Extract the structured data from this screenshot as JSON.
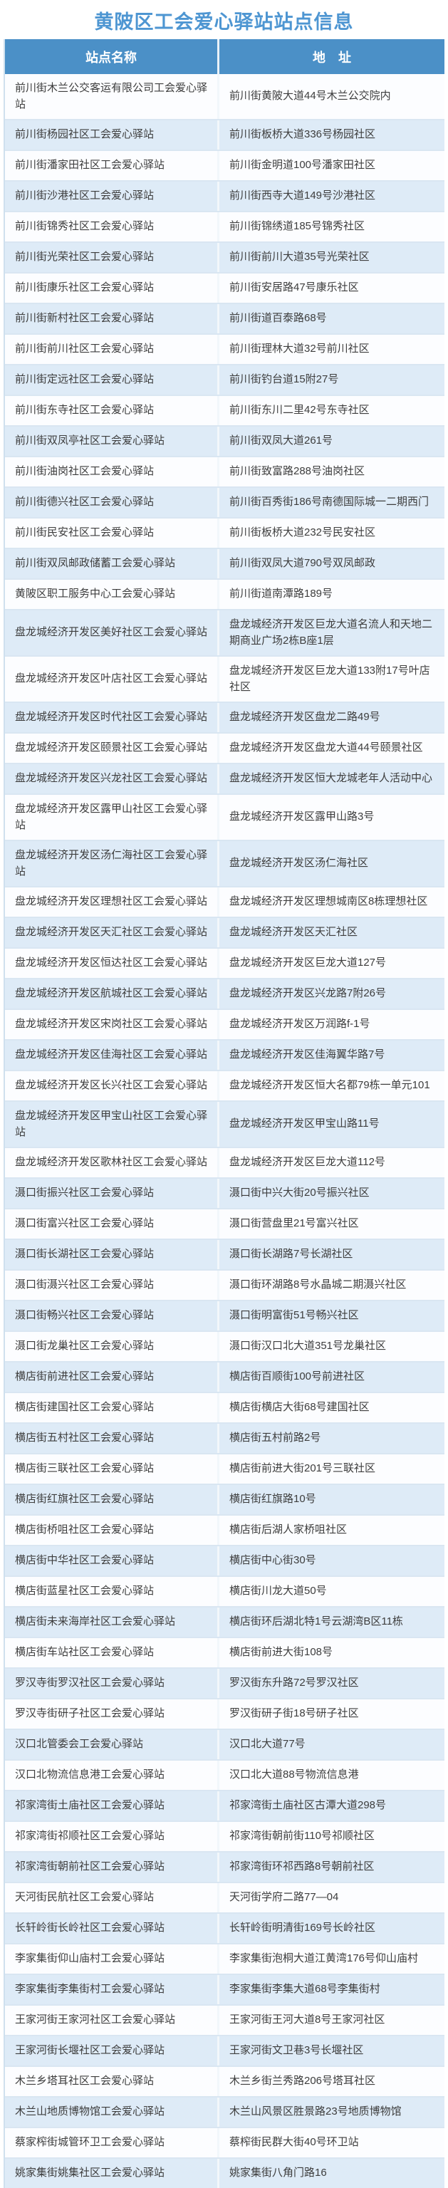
{
  "title": "黄陂区工会爱心驿站站点信息",
  "colors": {
    "title_blue": "#4e96d2",
    "header_bg": "#4b90c7",
    "row_even_bg": "#deebf7",
    "row_odd_bg": "#fcfdff",
    "text": "#3d3d3d"
  },
  "table": {
    "columns": {
      "name": "站点名称",
      "address": "地　址"
    },
    "rows": [
      {
        "name": "前川街木兰公交客运有限公司工会爱心驿站",
        "address": "前川街黄陂大道44号木兰公交院内"
      },
      {
        "name": "前川街杨园社区工会爱心驿站",
        "address": "前川街板桥大道336号杨园社区"
      },
      {
        "name": "前川街潘家田社区工会爱心驿站",
        "address": "前川街金明道100号潘家田社区"
      },
      {
        "name": "前川街沙港社区工会爱心驿站",
        "address": "前川街西寺大道149号沙港社区"
      },
      {
        "name": "前川街锦秀社区工会爱心驿站",
        "address": "前川街锦绣道185号锦秀社区"
      },
      {
        "name": "前川街光荣社区工会爱心驿站",
        "address": "前川街前川大道35号光荣社区"
      },
      {
        "name": "前川街康乐社区工会爱心驿站",
        "address": "前川街安居路47号康乐社区"
      },
      {
        "name": "前川街新村社区工会爱心驿站",
        "address": "前川街道百泰路68号"
      },
      {
        "name": "前川街前川社区工会爱心驿站",
        "address": "前川街理林大道32号前川社区"
      },
      {
        "name": "前川街定远社区工会爱心驿站",
        "address": "前川街钓台道15附27号"
      },
      {
        "name": "前川街东寺社区工会爱心驿站",
        "address": "前川街东川二里42号东寺社区"
      },
      {
        "name": "前川街双凤亭社区工会爱心驿站",
        "address": "前川街双凤大道261号"
      },
      {
        "name": "前川街油岗社区工会爱心驿站",
        "address": "前川街致富路288号油岗社区"
      },
      {
        "name": "前川街德兴社区工会爱心驿站",
        "address": "前川街百秀街186号南德国际城一二期西门"
      },
      {
        "name": "前川街民安社区工会爱心驿站",
        "address": "前川街板桥大道232号民安社区"
      },
      {
        "name": "前川街双凤邮政储蓄工会爱心驿站",
        "address": "前川街双凤大道790号双凤邮政"
      },
      {
        "name": "黄陂区职工服务中心工会爱心驿站",
        "address": "前川街道南潭路189号"
      },
      {
        "name": "盘龙城经济开发区美好社区工会爱心驿站",
        "address": "盘龙城经济开发区巨龙大道名流人和天地二期商业广场2栋B座1层"
      },
      {
        "name": "盘龙城经济开发区叶店社区工会爱心驿站",
        "address": "盘龙城经济开发区巨龙大道133附17号叶店社区"
      },
      {
        "name": "盘龙城经济开发区时代社区工会爱心驿站",
        "address": "盘龙城经济开发区盘龙二路49号"
      },
      {
        "name": "盘龙城经济开发区颐景社区工会爱心驿站",
        "address": "盘龙城经济开发区盘龙大道44号颐景社区"
      },
      {
        "name": "盘龙城经济开发区兴龙社区工会爱心驿站",
        "address": "盘龙城经济开发区恒大龙城老年人活动中心"
      },
      {
        "name": "盘龙城经济开发区露甲山社区工会爱心驿站",
        "address": "盘龙城经济开发区露甲山路3号"
      },
      {
        "name": "盘龙城经济开发区汤仁海社区工会爱心驿站",
        "address": "盘龙城经济开发区汤仁海社区"
      },
      {
        "name": "盘龙城经济开发区理想社区工会爱心驿站",
        "address": "盘龙城经济开发区理想城南区8栋理想社区"
      },
      {
        "name": "盘龙城经济开发区天汇社区工会爱心驿站",
        "address": "盘龙城经济开发区天汇社区"
      },
      {
        "name": "盘龙城经济开发区恒达社区工会爱心驿站",
        "address": "盘龙城经济开发区巨龙大道127号"
      },
      {
        "name": "盘龙城经济开发区航城社区工会爱心驿站",
        "address": "盘龙城经济开发区兴龙路7附26号"
      },
      {
        "name": "盘龙城经济开发区宋岗社区工会爱心驿站",
        "address": "盘龙城经济开发区万润路f-1号"
      },
      {
        "name": "盘龙城经济开发区佳海社区工会爱心驿站",
        "address": "盘龙城经济开发区佳海翼华路7号"
      },
      {
        "name": "盘龙城经济开发区长兴社区工会爱心驿站",
        "address": "盘龙城经济开发区恒大名都79栋一单元101"
      },
      {
        "name": "盘龙城经济开发区甲宝山社区工会爱心驿站",
        "address": "盘龙城经济开发区甲宝山路11号"
      },
      {
        "name": "盘龙城经济开发区歌林社区工会爱心驿站",
        "address": "盘龙城经济开发区巨龙大道112号"
      },
      {
        "name": "滠口街振兴社区工会爱心驿站",
        "address": "滠口街中兴大街20号振兴社区"
      },
      {
        "name": "滠口街富兴社区工会爱心驿站",
        "address": "滠口街营盘里21号富兴社区"
      },
      {
        "name": "滠口街长湖社区工会爱心驿站",
        "address": "滠口街长湖路7号长湖社区"
      },
      {
        "name": "滠口街滠兴社区工会爱心驿站",
        "address": "滠口街环湖路8号水晶城二期滠兴社区"
      },
      {
        "name": "滠口街畅兴社区工会爱心驿站",
        "address": "滠口街明富街51号畅兴社区"
      },
      {
        "name": "滠口街龙巢社区工会爱心驿站",
        "address": "滠口街汉口北大道351号龙巢社区"
      },
      {
        "name": "横店街前进社区工会爱心驿站",
        "address": "横店街百顺街100号前进社区"
      },
      {
        "name": "横店街建国社区工会爱心驿站",
        "address": "横店街横店大街68号建国社区"
      },
      {
        "name": "横店街五村社区工会爱心驿站",
        "address": "横店街五村前路2号"
      },
      {
        "name": "横店街三联社区工会爱心驿站",
        "address": "横店街前进大街201号三联社区"
      },
      {
        "name": "横店街红旗社区工会爱心驿站",
        "address": "横店街红旗路10号"
      },
      {
        "name": "横店街桥咀社区工会爱心驿站",
        "address": "横店街后湖人家桥咀社区"
      },
      {
        "name": "横店街中华社区工会爱心驿站",
        "address": "横店街中心街30号"
      },
      {
        "name": "横店街蓝星社区工会爱心驿站",
        "address": "横店街川龙大道50号"
      },
      {
        "name": "横店街未来海岸社区工会爱心驿站",
        "address": "横店街环后湖北特1号云湖湾B区11栋"
      },
      {
        "name": "横店街车站社区工会爱心驿站",
        "address": "横店街前进大街108号"
      },
      {
        "name": "罗汉寺街罗汉社区工会爱心驿站",
        "address": "罗汉街东升路72号罗汉社区"
      },
      {
        "name": "罗汉寺街研子社区工会爱心驿站",
        "address": "罗汉街研子街18号研子社区"
      },
      {
        "name": "汉口北管委会工会爱心驿站",
        "address": "汉口北大道77号"
      },
      {
        "name": "汉口北物流信息港工会爱心驿站",
        "address": "汉口北大道88号物流信息港"
      },
      {
        "name": "祁家湾街土庙社区工会爱心驿站",
        "address": "祁家湾街土庙社区古潭大道298号"
      },
      {
        "name": "祁家湾街祁顺社区工会爱心驿站",
        "address": "祁家湾街朝前街110号祁顺社区"
      },
      {
        "name": "祁家湾街朝前社区工会爱心驿站",
        "address": "祁家湾街环祁西路8号朝前社区"
      },
      {
        "name": "天河街民航社区工会爱心驿站",
        "address": "天河街学府二路77—04"
      },
      {
        "name": "长轩岭街长岭社区工会爱心驿站",
        "address": "长轩岭街明清街169号长岭社区"
      },
      {
        "name": "李家集街仰山庙村工会爱心驿站",
        "address": "李家集街泡桐大道江黄湾176号仰山庙村"
      },
      {
        "name": "李家集街李集街村工会爱心驿站",
        "address": "李家集街李集大道68号李集街村"
      },
      {
        "name": "王家河街王家河社区工会爱心驿站",
        "address": "王家河街王河大道8号王家河社区"
      },
      {
        "name": "王家河街长堰社区工会爱心驿站",
        "address": "王家河街文卫巷3号长堰社区"
      },
      {
        "name": "木兰乡塔耳社区工会爱心驿站",
        "address": "木兰乡街兰秀路206号塔耳社区"
      },
      {
        "name": "木兰山地质博物馆工会爱心驿站",
        "address": "木兰山风景区胜景路23号地质博物馆"
      },
      {
        "name": "蔡家榨街城管环卫工会爱心驿站",
        "address": "蔡榨街民群大街40号环卫站"
      },
      {
        "name": "姚家集街姚集社区工会爱心驿站",
        "address": "姚家集街八角门路16"
      }
    ]
  }
}
